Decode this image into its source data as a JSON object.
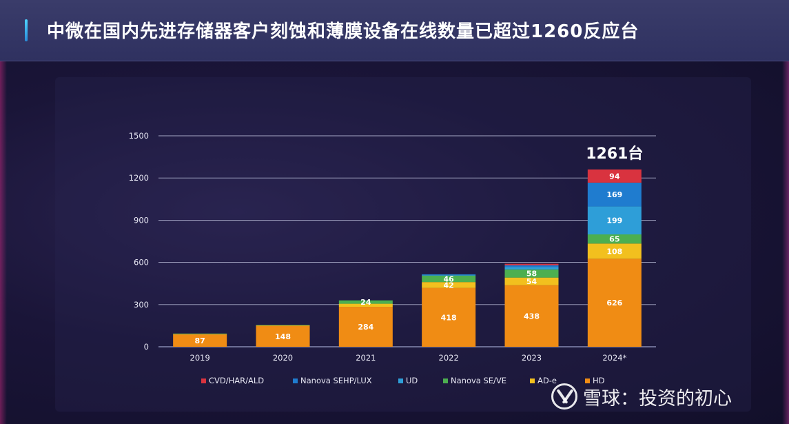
{
  "header": {
    "title": "中微在国内先进存储器客户刻蚀和薄膜设备在线数量已超过1260反应台"
  },
  "watermark": {
    "text": "雪球：投资的初心",
    "logo_icon": "xueqiu-logo-icon"
  },
  "chart_data": {
    "type": "bar",
    "stacked": true,
    "categories": [
      "2019",
      "2020",
      "2021",
      "2022",
      "2023",
      "2024*"
    ],
    "ylim": [
      0,
      1500
    ],
    "yticks": [
      0,
      300,
      600,
      900,
      1200,
      1500
    ],
    "grid": true,
    "legend_position": "bottom",
    "series": [
      {
        "name": "HD",
        "color": "#f08c14",
        "values": [
          87,
          148,
          284,
          418,
          438,
          626
        ],
        "labels": [
          "87",
          "148",
          "284",
          "418",
          "438",
          "626"
        ]
      },
      {
        "name": "AD-e",
        "color": "#f2c01e",
        "values": [
          4,
          4,
          22,
          42,
          54,
          108
        ],
        "labels": [
          "",
          "",
          "",
          "42",
          "54",
          "108"
        ]
      },
      {
        "name": "Nanova SE/VE",
        "color": "#4caf50",
        "values": [
          3,
          3,
          24,
          46,
          58,
          65
        ],
        "labels": [
          "",
          "",
          "24",
          "46",
          "58",
          "65"
        ]
      },
      {
        "name": "UD",
        "color": "#2e9ed8",
        "values": [
          0,
          0,
          0,
          6,
          18,
          199
        ],
        "labels": [
          "",
          "",
          "",
          "",
          "",
          "199"
        ]
      },
      {
        "name": "Nanova SEHP/LUX",
        "color": "#1f7ccf",
        "values": [
          0,
          0,
          0,
          3,
          12,
          169
        ],
        "labels": [
          "",
          "",
          "",
          "",
          "",
          "169"
        ]
      },
      {
        "name": "CVD/HAR/ALD",
        "color": "#d9333f",
        "values": [
          0,
          0,
          0,
          0,
          10,
          94
        ],
        "labels": [
          "",
          "",
          "",
          "",
          "",
          "94"
        ]
      }
    ],
    "legend_order": [
      "CVD/HAR/ALD",
      "Nanova SEHP/LUX",
      "UD",
      "Nanova SE/VE",
      "AD-e",
      "HD"
    ],
    "annotations": [
      {
        "category": "2024*",
        "text": "1261台"
      }
    ]
  }
}
